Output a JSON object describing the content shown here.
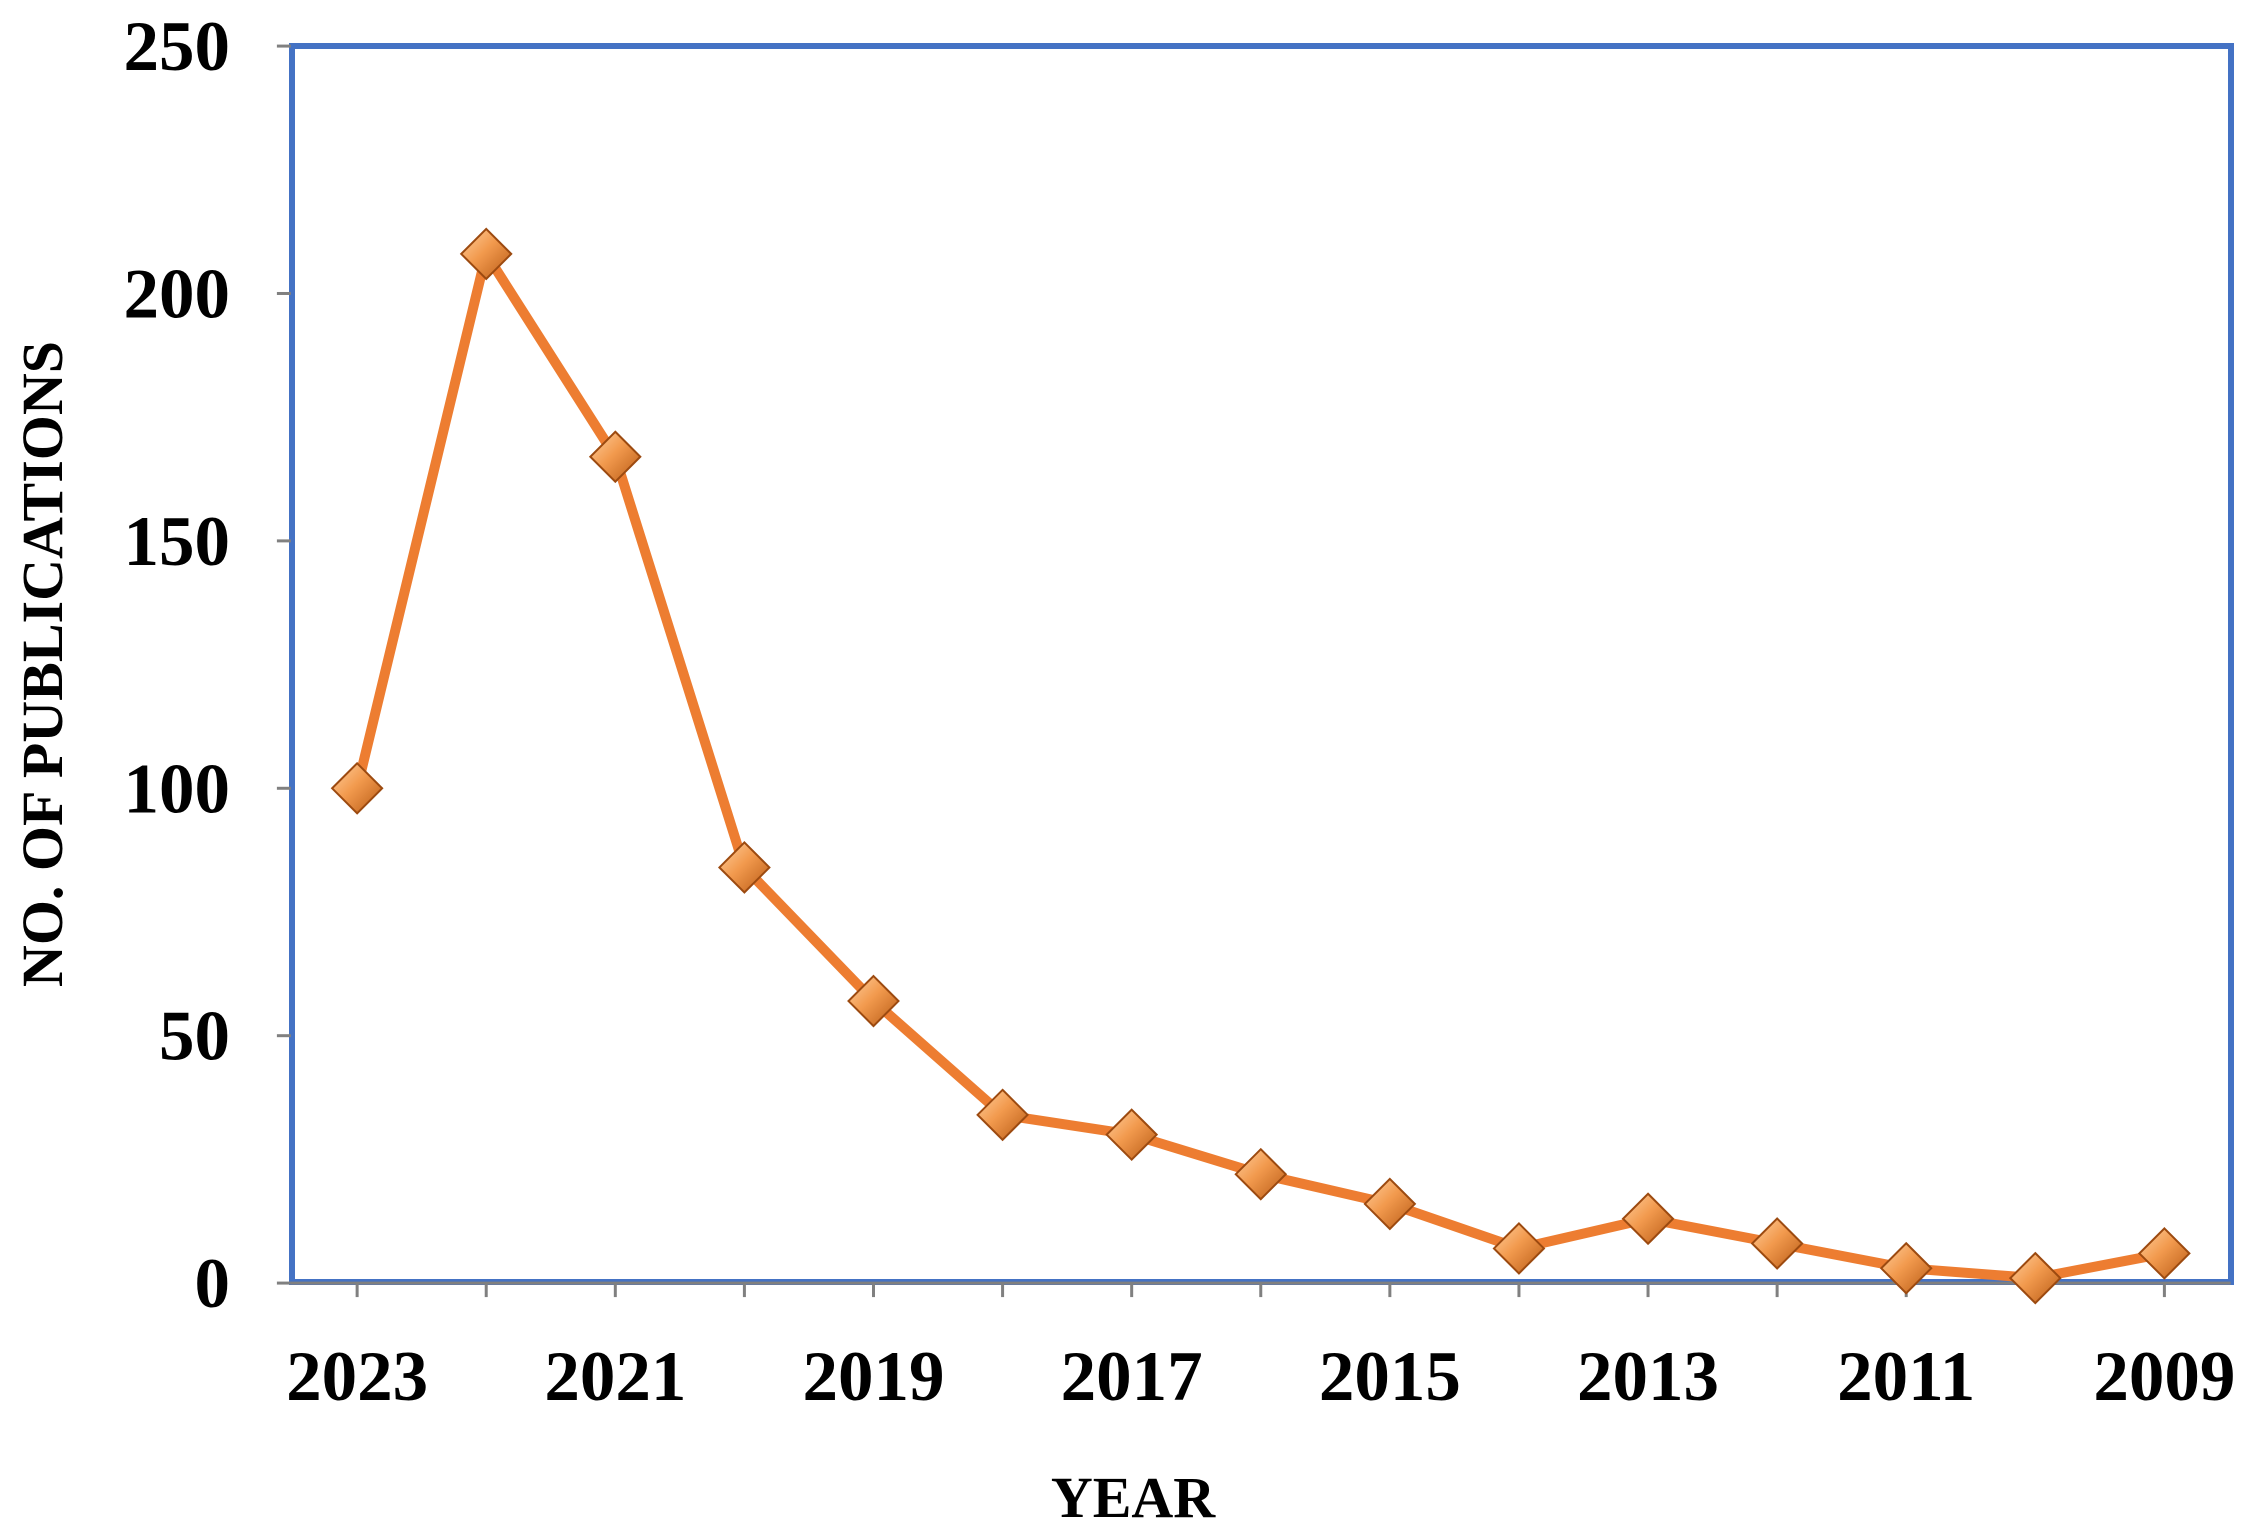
{
  "chart_data": {
    "type": "line",
    "title": "",
    "xlabel": "YEAR",
    "ylabel": "NO. OF PUBLICATIONS",
    "x": [
      2023,
      2022,
      2021,
      2020,
      2019,
      2018,
      2017,
      2016,
      2015,
      2014,
      2013,
      2012,
      2011,
      2010,
      2009
    ],
    "x_tick_labels": [
      "2023",
      "2021",
      "2019",
      "2017",
      "2015",
      "2013",
      "2011",
      "2009"
    ],
    "x_reversed": true,
    "ylim": [
      0,
      250
    ],
    "y_ticks": [
      0,
      50,
      100,
      150,
      200,
      250
    ],
    "grid": false,
    "legend": "none",
    "series": [
      {
        "values": [
          100,
          208,
          167,
          84,
          57,
          34,
          30,
          22,
          16,
          7,
          13,
          8,
          3,
          1,
          6
        ],
        "color": "#ED7D31",
        "marker": "diamond"
      }
    ],
    "frame_color": "#4472C4"
  }
}
